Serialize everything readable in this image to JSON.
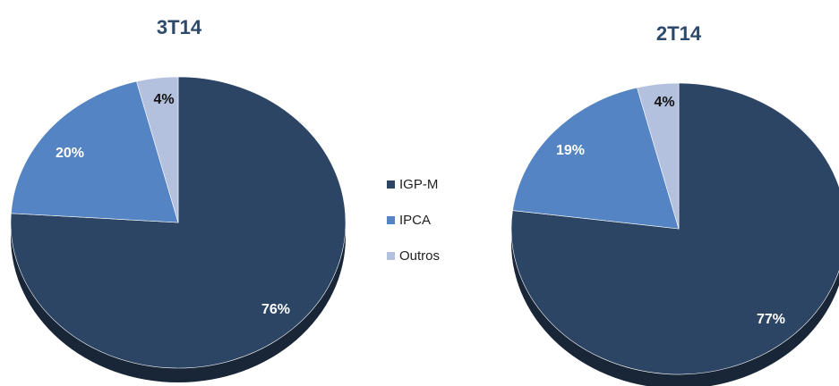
{
  "colors": {
    "IGP-M": "#2d4564",
    "IPCA": "#5484c3",
    "Outros": "#b3c1df",
    "title": "#2e4a6b"
  },
  "legend": {
    "items": [
      {
        "label": "IGP-M",
        "color": "#2d4564"
      },
      {
        "label": "IPCA",
        "color": "#5484c3"
      },
      {
        "label": "Outros",
        "color": "#b3c1df"
      }
    ]
  },
  "chart_data": [
    {
      "type": "pie",
      "title": "3T14",
      "slices": [
        {
          "label": "IGP-M",
          "value": 76,
          "text": "76%"
        },
        {
          "label": "IPCA",
          "value": 20,
          "text": "20%"
        },
        {
          "label": "Outros",
          "value": 4,
          "text": "4%"
        }
      ]
    },
    {
      "type": "pie",
      "title": "2T14",
      "slices": [
        {
          "label": "IGP-M",
          "value": 77,
          "text": "77%"
        },
        {
          "label": "IPCA",
          "value": 19,
          "text": "19%"
        },
        {
          "label": "Outros",
          "value": 4,
          "text": "4%"
        }
      ]
    }
  ]
}
